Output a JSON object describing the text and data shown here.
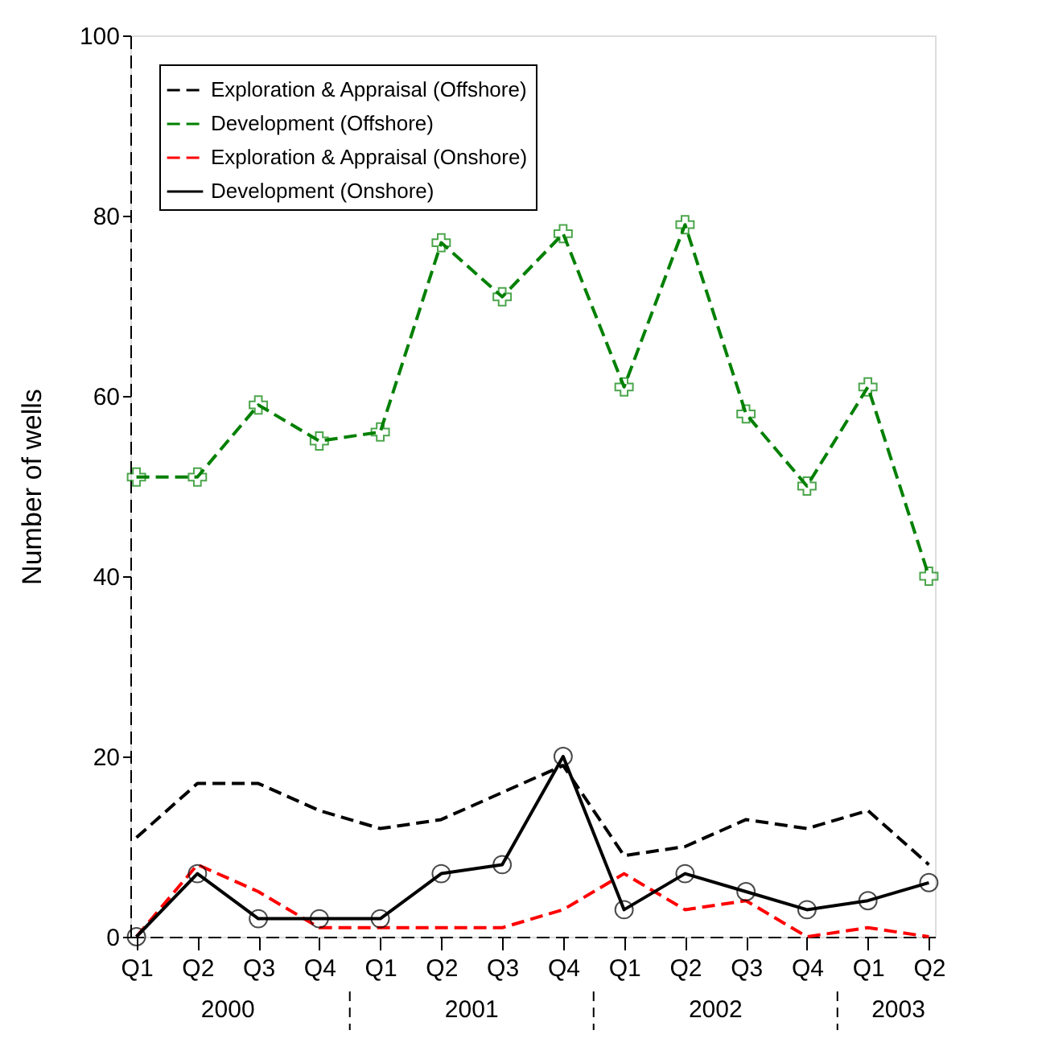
{
  "chart_data": {
    "type": "line",
    "ylabel": "Number of wells",
    "categories": [
      "Q1",
      "Q2",
      "Q3",
      "Q4",
      "Q1",
      "Q2",
      "Q3",
      "Q4",
      "Q1",
      "Q2",
      "Q3",
      "Q4",
      "Q1",
      "Q2"
    ],
    "annotations": [
      "2000",
      "2001",
      "2002",
      "2003"
    ],
    "ylim": [
      0,
      100
    ],
    "yticks": [
      0,
      20,
      40,
      60,
      80,
      100
    ],
    "grid": false,
    "legend": "top left",
    "series": [
      {
        "name": "Exploration & Appraisal (Offshore)",
        "color": "#000000",
        "line_style": "dashed",
        "marker": "none",
        "values": [
          11,
          17,
          17,
          14,
          12,
          13,
          16,
          19,
          9,
          10,
          13,
          12,
          14,
          8
        ]
      },
      {
        "name": "Development  (Offshore)",
        "color": "#008000",
        "line_style": "dashed",
        "marker": "cross",
        "values": [
          51,
          51,
          59,
          55,
          56,
          77,
          71,
          78,
          61,
          79,
          58,
          50,
          61,
          40
        ]
      },
      {
        "name": "Exploration & Appraisal (Onshore)",
        "color": "#ff0000",
        "line_style": "dashed",
        "marker": "none",
        "values": [
          0,
          8,
          5,
          1,
          1,
          1,
          1,
          3,
          7,
          3,
          4,
          0,
          1,
          0
        ]
      },
      {
        "name": "Development (Onshore)",
        "color": "#000000",
        "line_style": "solid",
        "marker": "circle",
        "values": [
          0,
          7,
          2,
          2,
          2,
          7,
          8,
          20,
          3,
          7,
          5,
          3,
          4,
          6
        ]
      }
    ]
  }
}
